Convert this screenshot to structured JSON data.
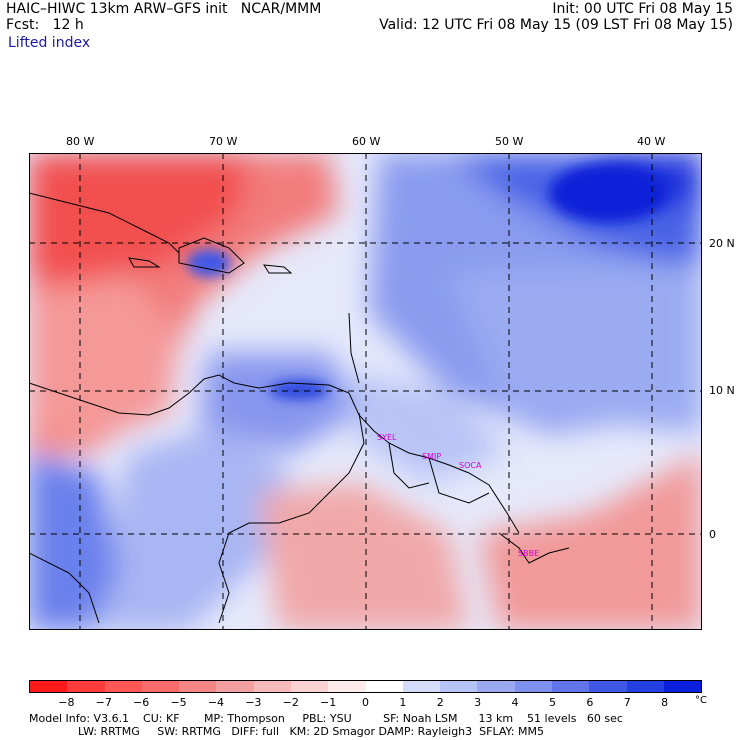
{
  "header": {
    "title_left": "HAIC–HIWC 13km ARW–GFS init   NCAR/MMM",
    "fcst": "Fcst:   12 h",
    "variable": "Lifted index",
    "init": "Init: 00 UTC Fri 08 May 15",
    "valid": "Valid: 12 UTC Fri 08 May 15 (09 LST Fri 08 May 15)"
  },
  "map": {
    "lon_labels": [
      "80 W",
      "70 W",
      "60 W",
      "50 W",
      "40 W"
    ],
    "lat_labels": [
      "20 N",
      "10 N",
      "0"
    ],
    "sites": [
      "SYEL",
      "SMJP",
      "SOCA",
      "SBBE"
    ]
  },
  "colorbar": {
    "labels": [
      "−8",
      "−7",
      "−6",
      "−5",
      "−4",
      "−3",
      "−2",
      "−1",
      "0",
      "1",
      "2",
      "3",
      "4",
      "5",
      "6",
      "7",
      "8"
    ],
    "unit": "°C",
    "colors": [
      "#ff1a1a",
      "#ff3c3c",
      "#ff5656",
      "#f76b6b",
      "#f48686",
      "#f4a0a0",
      "#f6baba",
      "#fad2d2",
      "#fdeaea",
      "#ffffff",
      "#d4dcfa",
      "#b6c3f6",
      "#9aaaf2",
      "#7e90ee",
      "#6274ea",
      "#4058e6",
      "#2440e2",
      "#0a20dc"
    ]
  },
  "footer": {
    "line1": "Model Info: V3.6.1    CU: KF       MP: Thompson     PBL: YSU         SF: Noah LSM      13 km    51 levels   60 sec",
    "line2": "              LW: RRTMG     SW: RRTMG   DIFF: full   KM: 2D Smagor DAMP: Rayleigh3  SFLAY: MM5"
  }
}
